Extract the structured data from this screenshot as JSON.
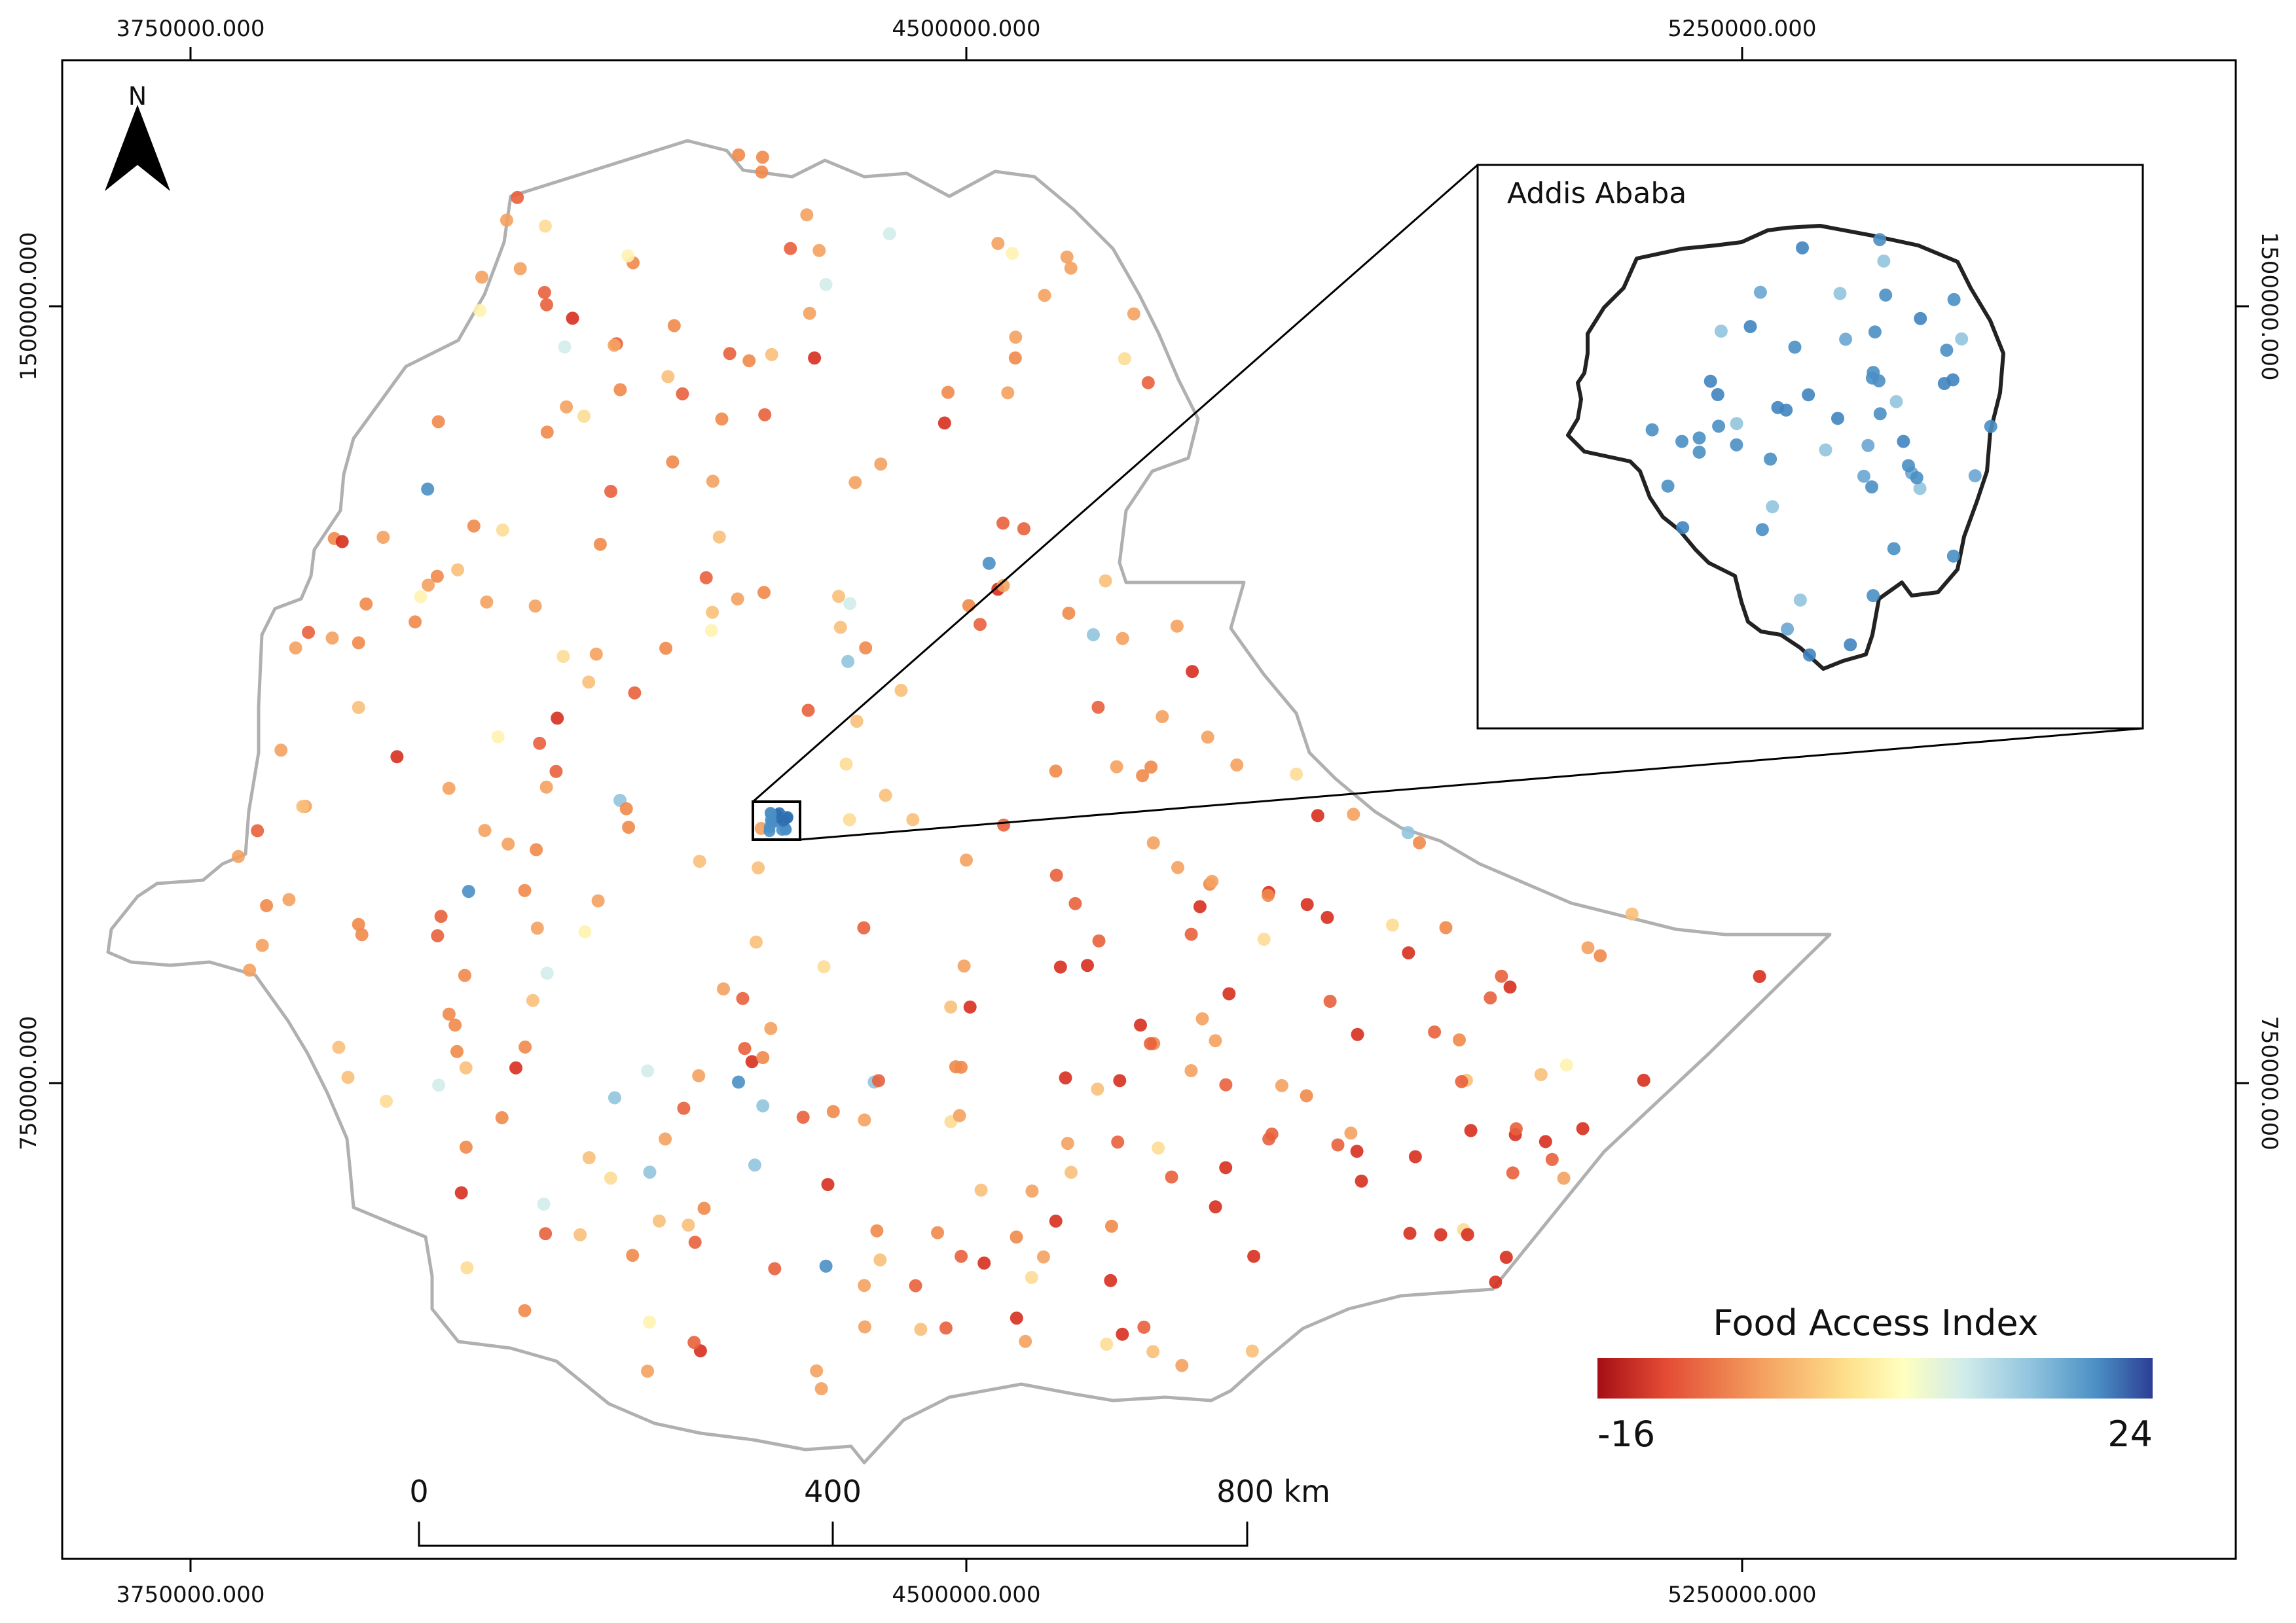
{
  "map": {
    "grid": {
      "top_labels": [
        "3750000.000",
        "4500000.000",
        "5250000.000"
      ],
      "bottom_labels": [
        "3750000.000",
        "4500000.000",
        "5250000.000"
      ],
      "left_labels": [
        "1500000.000",
        "750000.000"
      ],
      "right_labels": [
        "1500000.000",
        "750000.000"
      ]
    },
    "north_arrow": {
      "label": "N"
    },
    "inset": {
      "title": "Addis Ababa"
    },
    "legend": {
      "title": "Food Access Index",
      "min_label": "-16",
      "max_label": "24",
      "colors": [
        "#a50f15",
        "#e34a33",
        "#f4a261",
        "#fee08b",
        "#ffffbf",
        "#d1ecea",
        "#91c4de",
        "#4a8fc4",
        "#2c3e95"
      ]
    },
    "scale_bar": {
      "labels": [
        "0",
        "400",
        "800 km"
      ]
    },
    "colors": {
      "boundary": "#b0b0b0",
      "frame": "#000000",
      "inset_boundary": "#222222"
    }
  }
}
